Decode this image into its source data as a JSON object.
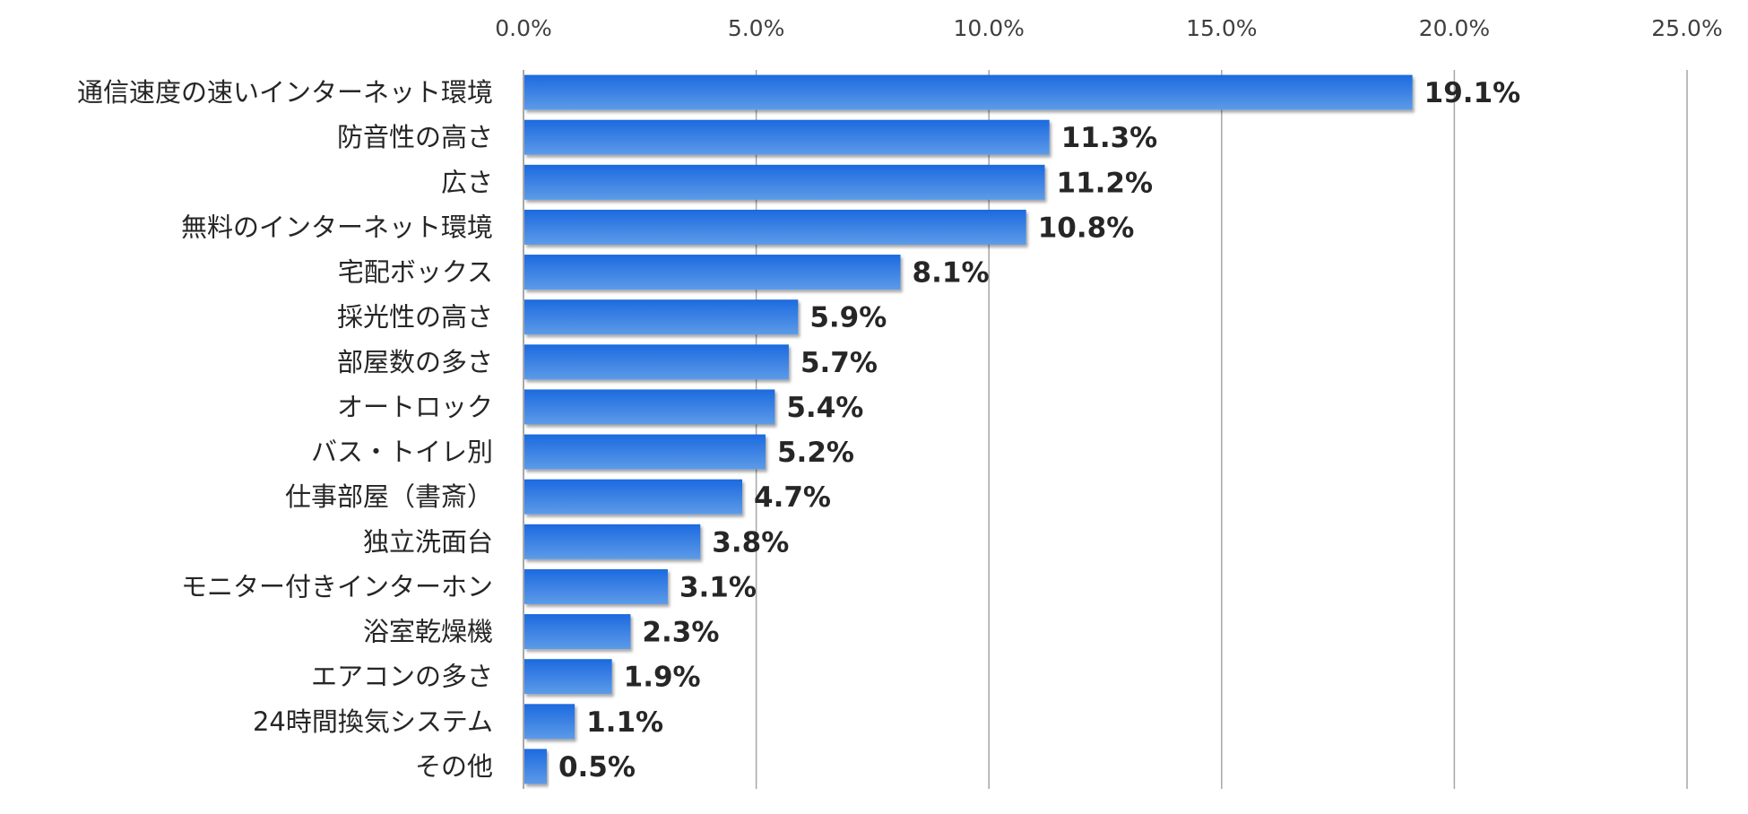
{
  "chart_data": {
    "type": "bar",
    "orientation": "horizontal",
    "categories": [
      "通信速度の速いインターネット環境",
      "防音性の高さ",
      "広さ",
      "無料のインターネット環境",
      "宅配ボックス",
      "採光性の高さ",
      "部屋数の多さ",
      "オートロック",
      "バス・トイレ別",
      "仕事部屋（書斎）",
      "独立洗面台",
      "モニター付きインターホン",
      "浴室乾燥機",
      "エアコンの多さ",
      "24時間換気システム",
      "その他"
    ],
    "values": [
      19.1,
      11.3,
      11.2,
      10.8,
      8.1,
      5.9,
      5.7,
      5.4,
      5.2,
      4.7,
      3.8,
      3.1,
      2.3,
      1.9,
      1.1,
      0.5
    ],
    "value_labels": [
      "19.1%",
      "11.3%",
      "11.2%",
      "10.8%",
      "8.1%",
      "5.9%",
      "5.7%",
      "5.4%",
      "5.2%",
      "4.7%",
      "3.8%",
      "3.1%",
      "2.3%",
      "1.9%",
      "1.1%",
      "0.5%"
    ],
    "xlim": [
      0,
      25
    ],
    "x_ticks": [
      0,
      5,
      10,
      15,
      20,
      25
    ],
    "x_tick_labels": [
      "0.0%",
      "5.0%",
      "10.0%",
      "15.0%",
      "20.0%",
      "25.0%"
    ],
    "x_axis_position": "top",
    "grid": true,
    "legend": "none",
    "title": "",
    "xlabel": "",
    "ylabel": "",
    "colors": {
      "bar_top": "#1c6ae0",
      "bar_bottom": "#5d9be8",
      "grid": "#a6a6a6",
      "axis": "#8c8c8c",
      "text": "#262626"
    }
  }
}
